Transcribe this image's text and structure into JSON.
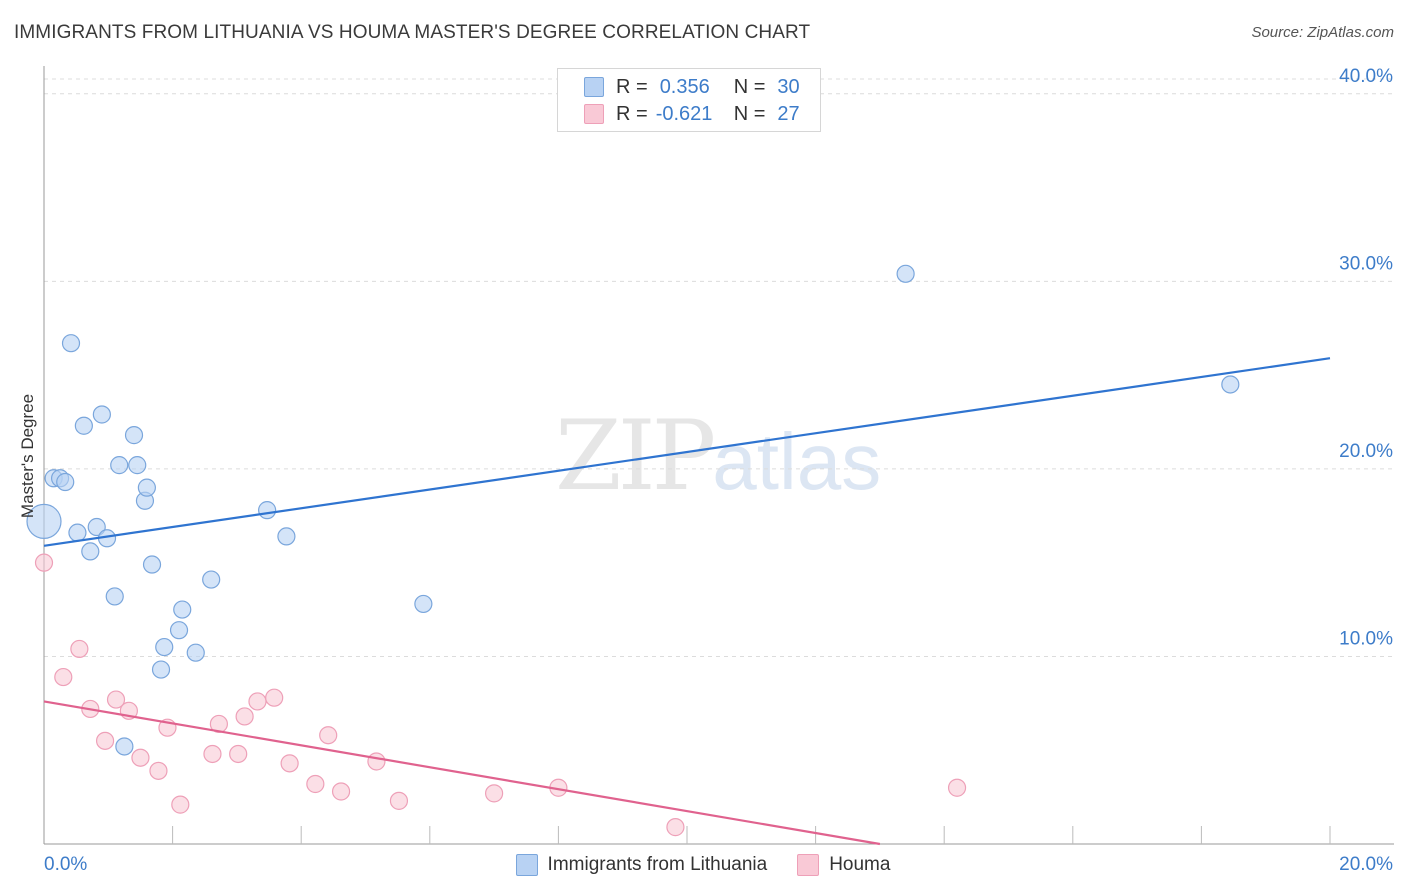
{
  "header": {
    "title": "IMMIGRANTS FROM LITHUANIA VS HOUMA MASTER'S DEGREE CORRELATION CHART",
    "source": "Source: ZipAtlas.com"
  },
  "watermark": {
    "zip": "ZIP",
    "atlas": "atlas"
  },
  "legend": {
    "rows": [
      {
        "r_label": "R =",
        "r_value": "0.356",
        "n_label": "N =",
        "n_value": "30"
      },
      {
        "r_label": "R =",
        "r_value": "-0.621",
        "n_label": "N =",
        "n_value": "27"
      }
    ]
  },
  "bottom_legend": {
    "items": [
      "Immigrants from Lithuania",
      "Houma"
    ]
  },
  "colors": {
    "blue_fill": "#b8d2f3",
    "blue_stroke": "#7aa6dc",
    "blue_line": "#2f74d0",
    "pink_fill": "#f9c9d6",
    "pink_stroke": "#eea0b8",
    "pink_line": "#e0628e",
    "tick_text": "#3d7cc9"
  },
  "chart_data": {
    "type": "scatter",
    "title": "IMMIGRANTS FROM LITHUANIA VS HOUMA MASTER'S DEGREE CORRELATION CHART",
    "xlabel": "",
    "ylabel": "Master's Degree",
    "xlim": [
      0,
      20
    ],
    "ylim": [
      0,
      41
    ],
    "x_tick_labels": [
      "0.0%",
      "20.0%"
    ],
    "y_ticks": [
      10,
      20,
      30,
      40
    ],
    "y_tick_labels": [
      "10.0%",
      "20.0%",
      "30.0%",
      "40.0%"
    ],
    "grid": true,
    "series": [
      {
        "name": "Immigrants from Lithuania",
        "r": 0.356,
        "n": 30,
        "trend": {
          "x": [
            0,
            20
          ],
          "y": [
            15.9,
            25.9
          ]
        },
        "points": [
          {
            "x": 0.0,
            "y": 17.2,
            "big": true
          },
          {
            "x": 0.15,
            "y": 19.5
          },
          {
            "x": 0.25,
            "y": 19.5
          },
          {
            "x": 0.33,
            "y": 19.3
          },
          {
            "x": 0.42,
            "y": 26.7
          },
          {
            "x": 0.52,
            "y": 16.6
          },
          {
            "x": 0.62,
            "y": 22.3
          },
          {
            "x": 0.72,
            "y": 15.6
          },
          {
            "x": 0.82,
            "y": 16.9
          },
          {
            "x": 0.9,
            "y": 22.9
          },
          {
            "x": 0.98,
            "y": 16.3
          },
          {
            "x": 1.1,
            "y": 13.2
          },
          {
            "x": 1.17,
            "y": 20.2
          },
          {
            "x": 1.25,
            "y": 5.2
          },
          {
            "x": 1.4,
            "y": 21.8
          },
          {
            "x": 1.45,
            "y": 20.2
          },
          {
            "x": 1.57,
            "y": 18.3
          },
          {
            "x": 1.6,
            "y": 19.0
          },
          {
            "x": 1.68,
            "y": 14.9
          },
          {
            "x": 1.82,
            "y": 9.3
          },
          {
            "x": 1.87,
            "y": 10.5
          },
          {
            "x": 2.1,
            "y": 11.4
          },
          {
            "x": 2.15,
            "y": 12.5
          },
          {
            "x": 2.36,
            "y": 10.2
          },
          {
            "x": 2.6,
            "y": 14.1
          },
          {
            "x": 3.47,
            "y": 17.8
          },
          {
            "x": 3.77,
            "y": 16.4
          },
          {
            "x": 5.9,
            "y": 12.8
          },
          {
            "x": 13.4,
            "y": 30.4
          },
          {
            "x": 18.45,
            "y": 24.5
          }
        ]
      },
      {
        "name": "Houma",
        "r": -0.621,
        "n": 27,
        "trend": {
          "x": [
            0,
            13
          ],
          "y": [
            7.6,
            0
          ]
        },
        "points": [
          {
            "x": 0.0,
            "y": 15.0
          },
          {
            "x": 0.3,
            "y": 8.9
          },
          {
            "x": 0.55,
            "y": 10.4
          },
          {
            "x": 0.72,
            "y": 7.2
          },
          {
            "x": 0.95,
            "y": 5.5
          },
          {
            "x": 1.12,
            "y": 7.7
          },
          {
            "x": 1.32,
            "y": 7.1
          },
          {
            "x": 1.5,
            "y": 4.6
          },
          {
            "x": 1.78,
            "y": 3.9
          },
          {
            "x": 1.92,
            "y": 6.2
          },
          {
            "x": 2.12,
            "y": 2.1
          },
          {
            "x": 2.62,
            "y": 4.8
          },
          {
            "x": 2.72,
            "y": 6.4
          },
          {
            "x": 3.02,
            "y": 4.8
          },
          {
            "x": 3.12,
            "y": 6.8
          },
          {
            "x": 3.32,
            "y": 7.6
          },
          {
            "x": 3.58,
            "y": 7.8
          },
          {
            "x": 3.82,
            "y": 4.3
          },
          {
            "x": 4.22,
            "y": 3.2
          },
          {
            "x": 4.42,
            "y": 5.8
          },
          {
            "x": 4.62,
            "y": 2.8
          },
          {
            "x": 5.17,
            "y": 4.4
          },
          {
            "x": 5.52,
            "y": 2.3
          },
          {
            "x": 7.0,
            "y": 2.7
          },
          {
            "x": 8.0,
            "y": 3.0
          },
          {
            "x": 9.82,
            "y": 0.9
          },
          {
            "x": 14.2,
            "y": 3.0
          }
        ]
      }
    ]
  }
}
